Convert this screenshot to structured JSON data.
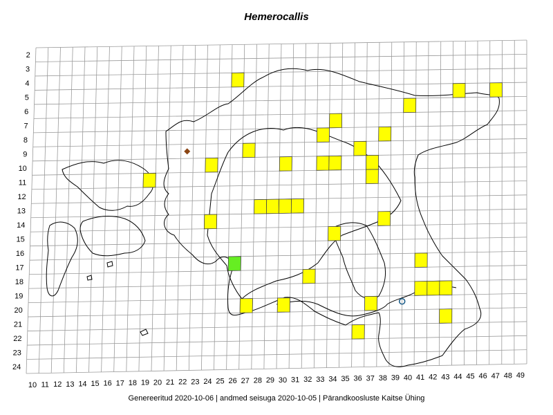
{
  "title": "Hemerocallis",
  "footer": "Genereeritud 2020-10-06  |  andmed seisuga 2020-10-05  |  Pärandkoosluste Kaitse Ühing",
  "colors": {
    "grid": "#9a9a9a",
    "outline": "#000000",
    "present": "#ffff00",
    "highlight": "#66ee22",
    "diamond": "#8b4513",
    "circle": "#1f5f8b"
  },
  "grid": {
    "columns": [
      10,
      11,
      12,
      13,
      14,
      15,
      16,
      17,
      18,
      19,
      20,
      21,
      22,
      23,
      24,
      25,
      26,
      27,
      28,
      29,
      30,
      31,
      32,
      33,
      34,
      35,
      36,
      37,
      38,
      39,
      40,
      41,
      42,
      43,
      44,
      45,
      46,
      47,
      48,
      49
    ],
    "rows": [
      2,
      3,
      4,
      5,
      6,
      7,
      8,
      9,
      10,
      11,
      12,
      13,
      14,
      15,
      16,
      17,
      18,
      19,
      20,
      21,
      22,
      23,
      24
    ]
  },
  "records": {
    "yellow_squares": [
      {
        "col": 26,
        "row": 4
      },
      {
        "col": 44,
        "row": 5
      },
      {
        "col": 47,
        "row": 5
      },
      {
        "col": 40,
        "row": 6
      },
      {
        "col": 34,
        "row": 7
      },
      {
        "col": 33,
        "row": 8
      },
      {
        "col": 38,
        "row": 8
      },
      {
        "col": 27,
        "row": 9
      },
      {
        "col": 36,
        "row": 9
      },
      {
        "col": 24,
        "row": 10
      },
      {
        "col": 30,
        "row": 10
      },
      {
        "col": 33,
        "row": 10
      },
      {
        "col": 34,
        "row": 10
      },
      {
        "col": 37,
        "row": 10
      },
      {
        "col": 19,
        "row": 11
      },
      {
        "col": 37,
        "row": 11
      },
      {
        "col": 28,
        "row": 13
      },
      {
        "col": 29,
        "row": 13
      },
      {
        "col": 30,
        "row": 13
      },
      {
        "col": 31,
        "row": 13
      },
      {
        "col": 24,
        "row": 14
      },
      {
        "col": 38,
        "row": 14
      },
      {
        "col": 34,
        "row": 15
      },
      {
        "col": 41,
        "row": 17
      },
      {
        "col": 32,
        "row": 18
      },
      {
        "col": 41,
        "row": 19
      },
      {
        "col": 42,
        "row": 19
      },
      {
        "col": 43,
        "row": 19
      },
      {
        "col": 27,
        "row": 20
      },
      {
        "col": 30,
        "row": 20
      },
      {
        "col": 37,
        "row": 20
      },
      {
        "col": 43,
        "row": 21
      },
      {
        "col": 36,
        "row": 22
      }
    ],
    "green_squares": [
      {
        "col": 26,
        "row": 17
      }
    ],
    "diamond_markers": [
      {
        "col": 22,
        "row": 9.5
      }
    ],
    "circle_markers": [
      {
        "col": 39.5,
        "row": 20.4
      }
    ]
  }
}
